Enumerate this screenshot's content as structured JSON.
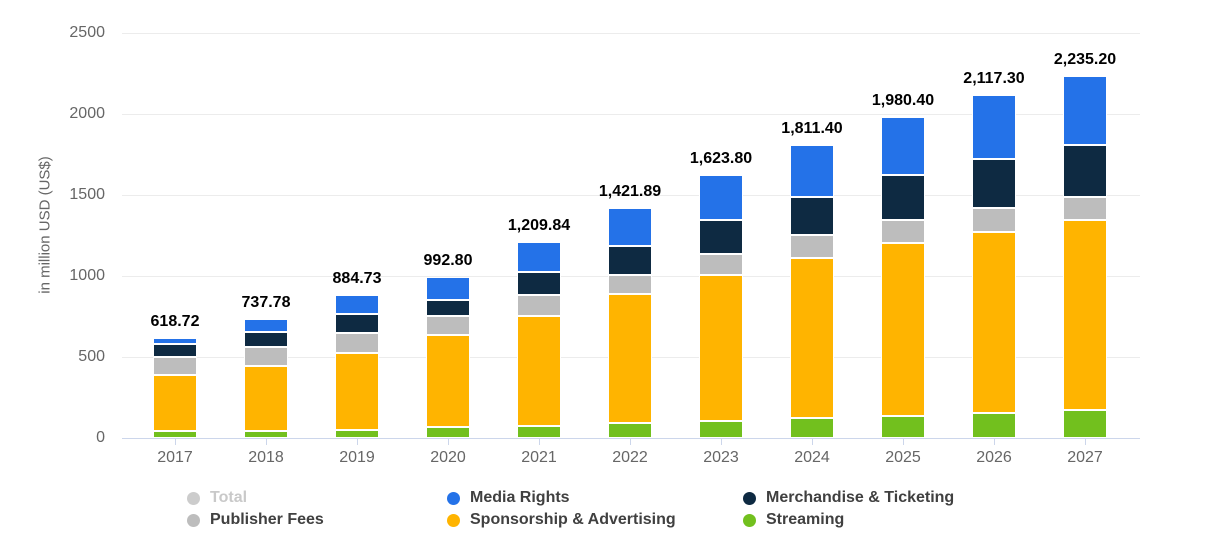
{
  "chart_data": {
    "type": "stacked-bar",
    "title": "",
    "xlabel": "",
    "ylabel": "in million USD (US$)",
    "ylim": [
      0,
      2500
    ],
    "yticks": [
      0,
      500,
      1000,
      1500,
      2000,
      2500
    ],
    "grid": true,
    "legend_position": "bottom",
    "categories": [
      "2017",
      "2018",
      "2019",
      "2020",
      "2021",
      "2022",
      "2023",
      "2024",
      "2025",
      "2026",
      "2027"
    ],
    "totals": [
      618.72,
      737.78,
      884.73,
      992.8,
      1209.84,
      1421.89,
      1623.8,
      1811.4,
      1980.4,
      2117.3,
      2235.2
    ],
    "total_labels": [
      "618.72",
      "737.78",
      "884.73",
      "992.80",
      "1,209.84",
      "1,421.89",
      "1,623.80",
      "1,811.40",
      "1,980.40",
      "2,117.30",
      "2,235.20"
    ],
    "stacking_order_note": "series listed bottom to top; segment values estimated from gridlines, sums equal labeled totals",
    "series": [
      {
        "name": "Streaming",
        "color": "#72c01e",
        "values": [
          44,
          44,
          52,
          71,
          76,
          91,
          105,
          122,
          137,
          152,
          173
        ]
      },
      {
        "name": "Sponsorship & Advertising",
        "color": "#ffb400",
        "values": [
          345,
          402,
          474,
          562,
          676,
          796,
          898,
          991,
          1067,
          1118,
          1170
        ]
      },
      {
        "name": "Publisher Fees",
        "color": "#bdbdbd",
        "values": [
          112,
          114,
          123,
          123,
          128,
          120,
          130,
          140,
          140,
          150,
          145
        ]
      },
      {
        "name": "Merchandise & Ticketing",
        "color": "#0e2a42",
        "values": [
          79,
          96,
          117,
          93,
          145,
          180,
          213,
          237,
          280,
          300,
          322
        ]
      },
      {
        "name": "Media Rights",
        "color": "#2472e8",
        "values": [
          38.72,
          81.78,
          118.73,
          143.8,
          184.84,
          234.89,
          277.8,
          321.4,
          356.4,
          397.3,
          425.2
        ]
      }
    ],
    "hidden_series": [
      "Total"
    ]
  },
  "legend": {
    "items": [
      {
        "label": "Total",
        "color": "#cccccc",
        "muted": true,
        "col": 0,
        "row": 0
      },
      {
        "label": "Publisher Fees",
        "color": "#bdbdbd",
        "muted": false,
        "col": 0,
        "row": 1
      },
      {
        "label": "Media Rights",
        "color": "#2472e8",
        "muted": false,
        "col": 1,
        "row": 0
      },
      {
        "label": "Sponsorship & Advertising",
        "color": "#ffb400",
        "muted": false,
        "col": 1,
        "row": 1
      },
      {
        "label": "Merchandise & Ticketing",
        "color": "#0e2a42",
        "muted": false,
        "col": 2,
        "row": 0
      },
      {
        "label": "Streaming",
        "color": "#72c01e",
        "muted": false,
        "col": 2,
        "row": 1
      }
    ]
  },
  "colors": {
    "axis_line": "#ccd6eb",
    "gridline": "#ececec",
    "axis_text": "#666666",
    "data_label": "#000000",
    "background": "#ffffff"
  }
}
